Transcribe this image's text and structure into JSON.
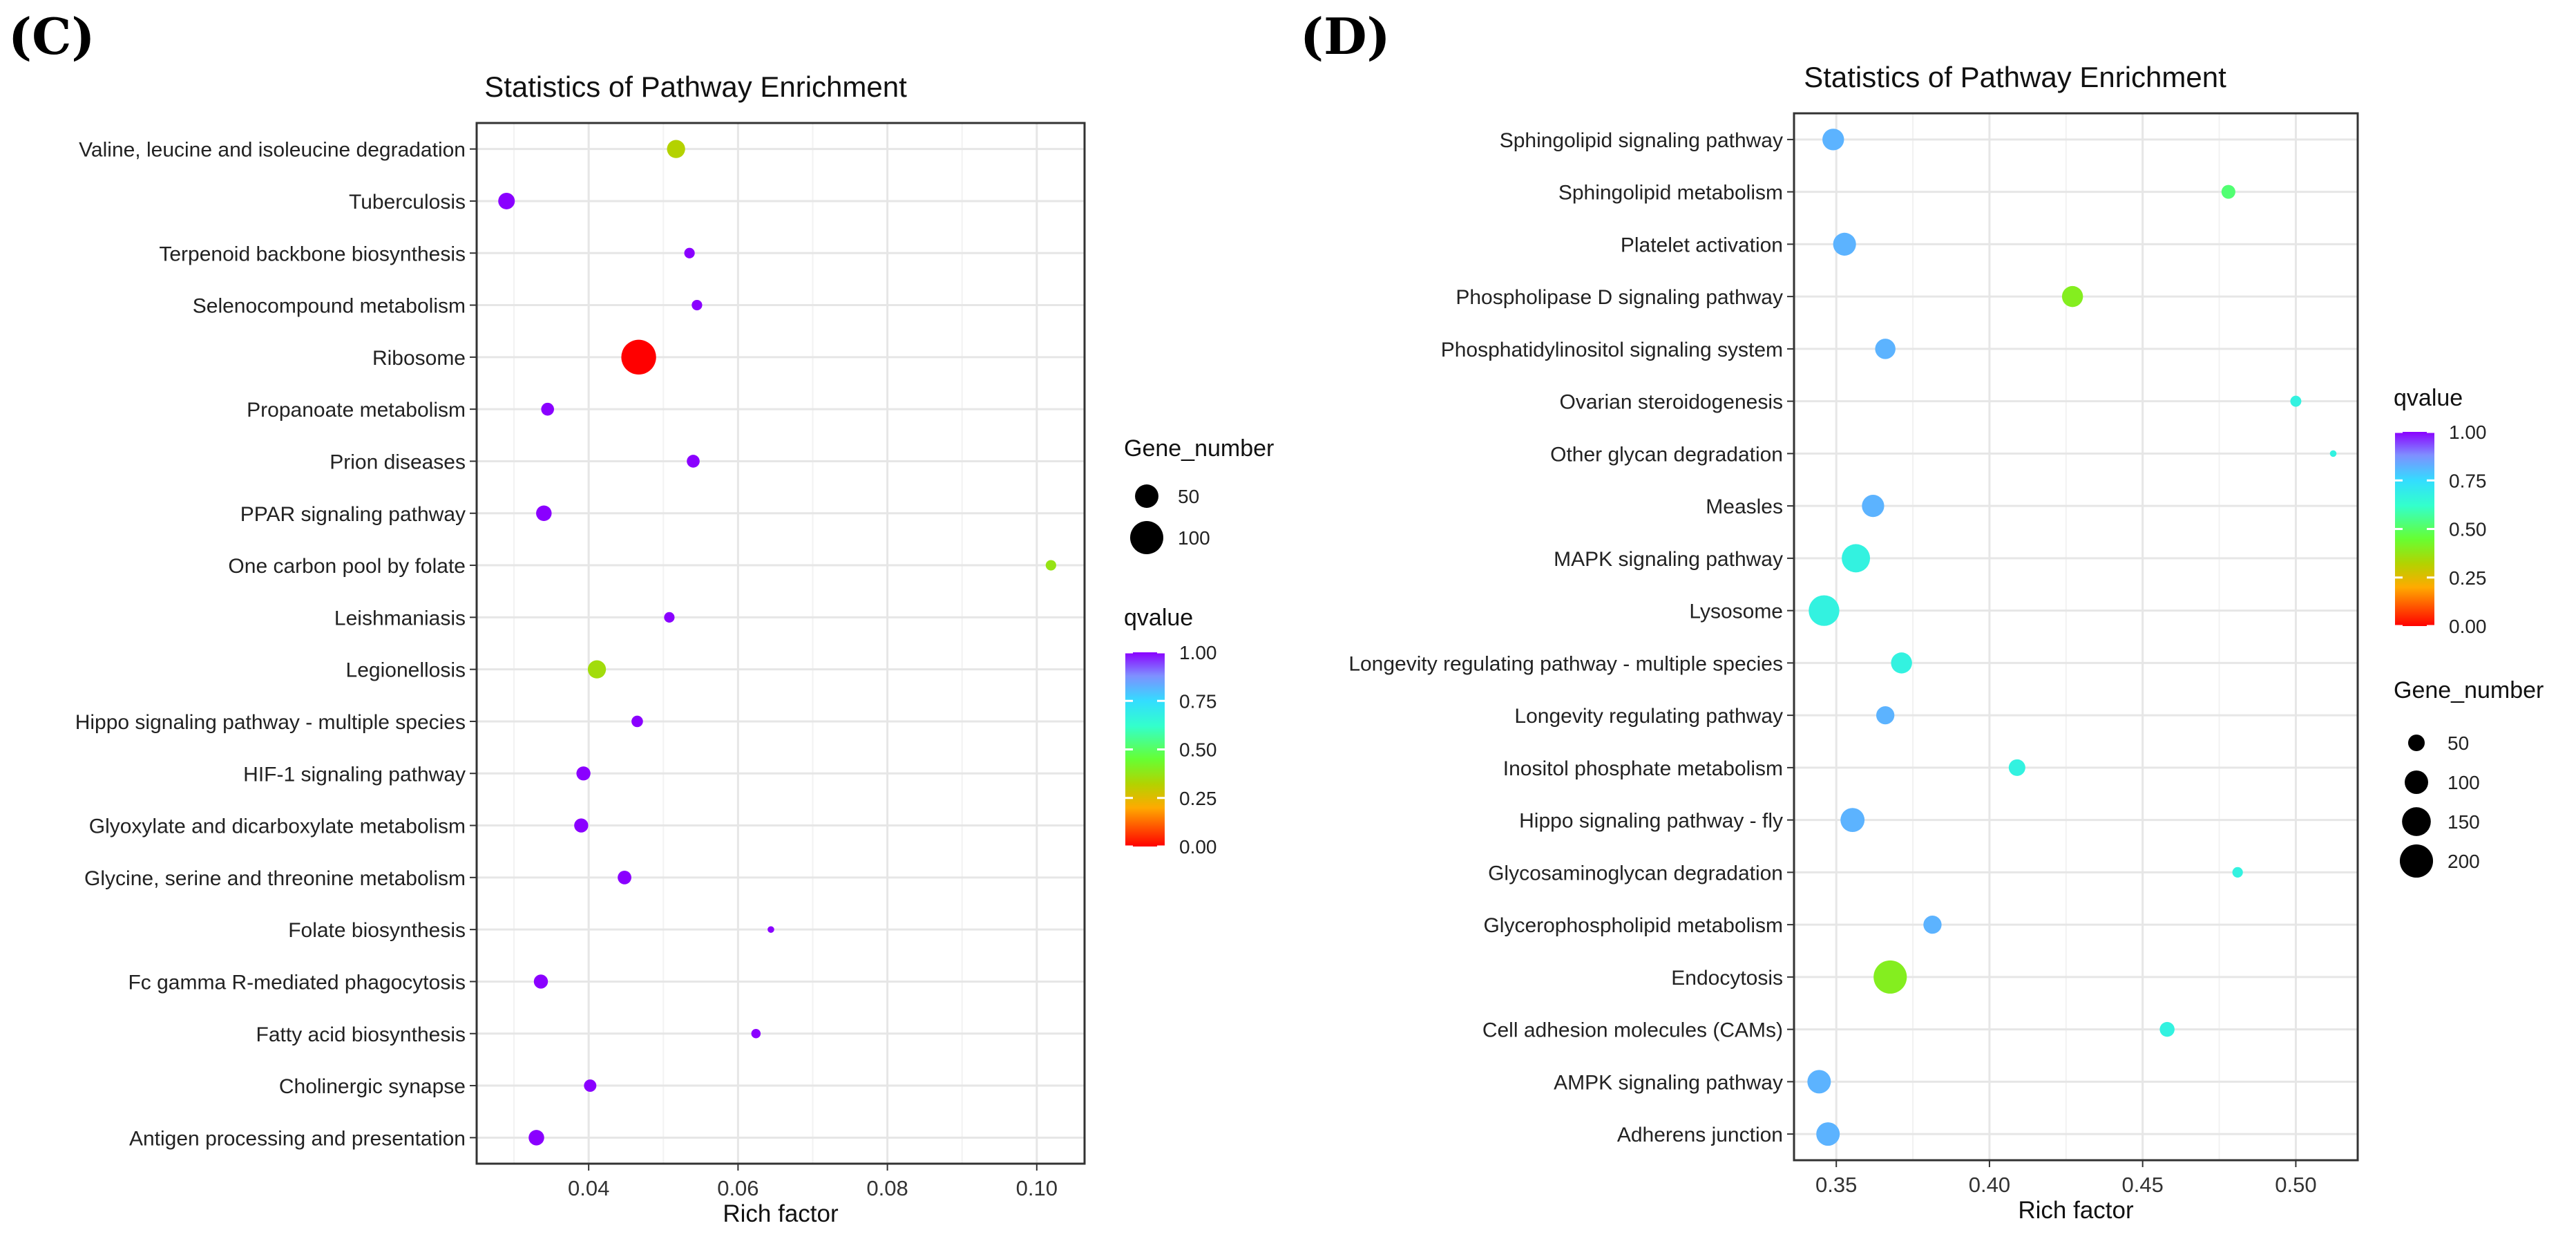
{
  "chart_data": [
    {
      "panel_label": "(C)",
      "type": "scatter",
      "title": "Statistics of Pathway Enrichment",
      "xlabel": "Rich factor",
      "ylabel": "",
      "xlim": [
        0.025,
        0.1064
      ],
      "xticks": [
        0.04,
        0.06,
        0.08,
        0.1
      ],
      "xtick_labels": [
        "0.04",
        "0.06",
        "0.08",
        "0.10"
      ],
      "grid": true,
      "legend_order": [
        "size",
        "color"
      ],
      "size_legend": {
        "title": "Gene_number",
        "values": [
          50,
          100
        ],
        "labels": [
          "50",
          "100"
        ]
      },
      "color_legend": {
        "title": "qvalue",
        "ticks": [
          1.0,
          0.75,
          0.5,
          0.25,
          0.0
        ],
        "labels": [
          "1.00",
          "0.75",
          "0.50",
          "0.25",
          "0.00"
        ]
      },
      "size_scale": 2.4,
      "points": [
        {
          "pathway": "Valine, leucine and isoleucine degradation",
          "rich_factor": 0.0517,
          "qvalue": 0.32,
          "gene_number": 30
        },
        {
          "pathway": "Tuberculosis",
          "rich_factor": 0.029,
          "qvalue": 1.0,
          "gene_number": 25
        },
        {
          "pathway": "Terpenoid backbone biosynthesis",
          "rich_factor": 0.0535,
          "qvalue": 1.0,
          "gene_number": 10
        },
        {
          "pathway": "Selenocompound metabolism",
          "rich_factor": 0.0545,
          "qvalue": 1.0,
          "gene_number": 10
        },
        {
          "pathway": "Ribosome",
          "rich_factor": 0.0467,
          "qvalue": 0.0,
          "gene_number": 110
        },
        {
          "pathway": "Propanoate metabolism",
          "rich_factor": 0.0345,
          "qvalue": 1.0,
          "gene_number": 15
        },
        {
          "pathway": "Prion diseases",
          "rich_factor": 0.054,
          "qvalue": 1.0,
          "gene_number": 15
        },
        {
          "pathway": "PPAR signaling pathway",
          "rich_factor": 0.034,
          "qvalue": 1.0,
          "gene_number": 22
        },
        {
          "pathway": "One carbon pool by folate",
          "rich_factor": 0.1019,
          "qvalue": 0.37,
          "gene_number": 10
        },
        {
          "pathway": "Leishmaniasis",
          "rich_factor": 0.0508,
          "qvalue": 1.0,
          "gene_number": 10
        },
        {
          "pathway": "Legionellosis",
          "rich_factor": 0.0411,
          "qvalue": 0.35,
          "gene_number": 30
        },
        {
          "pathway": "Hippo signaling pathway - multiple species",
          "rich_factor": 0.0465,
          "qvalue": 1.0,
          "gene_number": 12
        },
        {
          "pathway": "HIF-1 signaling pathway",
          "rich_factor": 0.0393,
          "qvalue": 1.0,
          "gene_number": 18
        },
        {
          "pathway": "Glyoxylate and dicarboxylate metabolism",
          "rich_factor": 0.039,
          "qvalue": 1.0,
          "gene_number": 18
        },
        {
          "pathway": "Glycine, serine and threonine metabolism",
          "rich_factor": 0.0448,
          "qvalue": 1.0,
          "gene_number": 17
        },
        {
          "pathway": "Folate biosynthesis",
          "rich_factor": 0.0644,
          "qvalue": 1.0,
          "gene_number": 4
        },
        {
          "pathway": "Fc gamma R-mediated phagocytosis",
          "rich_factor": 0.0336,
          "qvalue": 1.0,
          "gene_number": 18
        },
        {
          "pathway": "Fatty acid biosynthesis",
          "rich_factor": 0.0624,
          "qvalue": 1.0,
          "gene_number": 8
        },
        {
          "pathway": "Cholinergic synapse",
          "rich_factor": 0.0402,
          "qvalue": 1.0,
          "gene_number": 14
        },
        {
          "pathway": "Antigen processing and presentation",
          "rich_factor": 0.033,
          "qvalue": 1.0,
          "gene_number": 22
        }
      ]
    },
    {
      "panel_label": "(D)",
      "type": "scatter",
      "title": "Statistics of Pathway Enrichment",
      "xlabel": "Rich factor",
      "ylabel": "",
      "xlim": [
        0.3362,
        0.5202
      ],
      "xticks": [
        0.35,
        0.4,
        0.45,
        0.5
      ],
      "xtick_labels": [
        "0.35",
        "0.40",
        "0.45",
        "0.50"
      ],
      "grid": true,
      "legend_order": [
        "color",
        "size"
      ],
      "size_legend": {
        "title": "Gene_number",
        "values": [
          50,
          100,
          150,
          200
        ],
        "labels": [
          "50",
          "100",
          "150",
          "200"
        ]
      },
      "color_legend": {
        "title": "qvalue",
        "ticks": [
          1.0,
          0.75,
          0.5,
          0.25,
          0.0
        ],
        "labels": [
          "1.00",
          "0.75",
          "0.50",
          "0.25",
          "0.00"
        ]
      },
      "size_scale": 1.7,
      "points": [
        {
          "pathway": "Sphingolipid signaling pathway",
          "rich_factor": 0.349,
          "qvalue": 0.82,
          "gene_number": 85
        },
        {
          "pathway": "Sphingolipid metabolism",
          "rich_factor": 0.478,
          "qvalue": 0.52,
          "gene_number": 35
        },
        {
          "pathway": "Platelet activation",
          "rich_factor": 0.3527,
          "qvalue": 0.82,
          "gene_number": 95
        },
        {
          "pathway": "Phospholipase D signaling pathway",
          "rich_factor": 0.4271,
          "qvalue": 0.4,
          "gene_number": 80
        },
        {
          "pathway": "Phosphatidylinositol signaling system",
          "rich_factor": 0.366,
          "qvalue": 0.82,
          "gene_number": 75
        },
        {
          "pathway": "Ovarian steroidogenesis",
          "rich_factor": 0.5,
          "qvalue": 0.67,
          "gene_number": 22
        },
        {
          "pathway": "Other glycan degradation",
          "rich_factor": 0.5122,
          "qvalue": 0.67,
          "gene_number": 8
        },
        {
          "pathway": "Measles",
          "rich_factor": 0.362,
          "qvalue": 0.82,
          "gene_number": 90
        },
        {
          "pathway": "MAPK signaling pathway",
          "rich_factor": 0.3564,
          "qvalue": 0.67,
          "gene_number": 145
        },
        {
          "pathway": "Lysosome",
          "rich_factor": 0.346,
          "qvalue": 0.67,
          "gene_number": 170
        },
        {
          "pathway": "Longevity regulating pathway - multiple species",
          "rich_factor": 0.3713,
          "qvalue": 0.67,
          "gene_number": 80
        },
        {
          "pathway": "Longevity regulating pathway",
          "rich_factor": 0.366,
          "qvalue": 0.82,
          "gene_number": 60
        },
        {
          "pathway": "Inositol phosphate metabolism",
          "rich_factor": 0.409,
          "qvalue": 0.67,
          "gene_number": 50
        },
        {
          "pathway": "Hippo signaling pathway - fly",
          "rich_factor": 0.3553,
          "qvalue": 0.82,
          "gene_number": 105
        },
        {
          "pathway": "Glycosaminoglycan degradation",
          "rich_factor": 0.481,
          "qvalue": 0.67,
          "gene_number": 20
        },
        {
          "pathway": "Glycerophospholipid metabolism",
          "rich_factor": 0.3814,
          "qvalue": 0.82,
          "gene_number": 60
        },
        {
          "pathway": "Endocytosis",
          "rich_factor": 0.3676,
          "qvalue": 0.4,
          "gene_number": 200
        },
        {
          "pathway": "Cell adhesion molecules (CAMs)",
          "rich_factor": 0.458,
          "qvalue": 0.67,
          "gene_number": 40
        },
        {
          "pathway": "AMPK signaling pathway",
          "rich_factor": 0.3444,
          "qvalue": 0.82,
          "gene_number": 100
        },
        {
          "pathway": "Adherens junction",
          "rich_factor": 0.3473,
          "qvalue": 0.82,
          "gene_number": 100
        }
      ]
    }
  ]
}
